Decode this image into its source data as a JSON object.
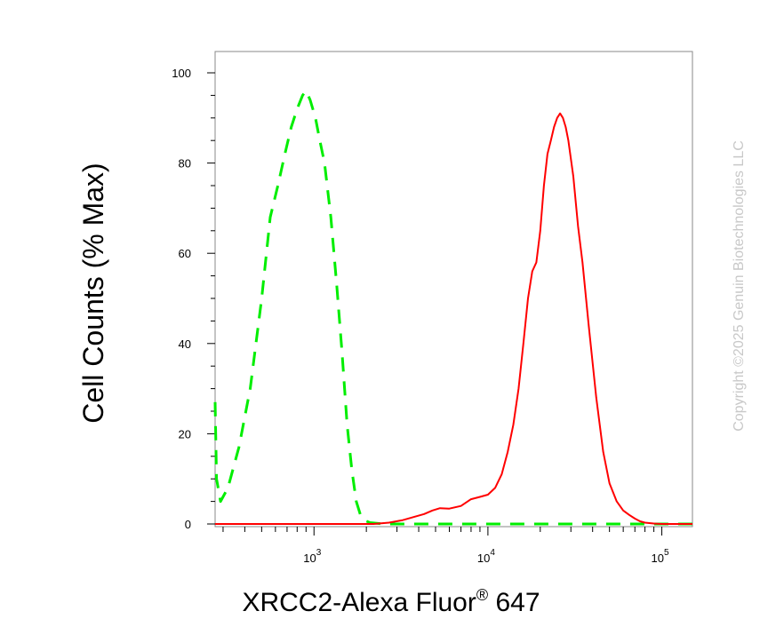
{
  "chart_data": {
    "type": "line",
    "title": "",
    "xlabel": "XRCC2-Alexa Fluor",
    "xlabel_superscript": "®",
    "xlabel_suffix": " 647",
    "ylabel": "Cell Counts (% Max)",
    "x_scale": "log",
    "xlim": [
      270,
      150000
    ],
    "ylim": [
      0,
      100
    ],
    "y_ticks": [
      0,
      20,
      40,
      60,
      80,
      100
    ],
    "y_tick_labels": [
      "0",
      "20",
      "40",
      "60",
      "80",
      "100"
    ],
    "x_ticks": [
      {
        "value": 1000,
        "base": "10",
        "exp": "3"
      },
      {
        "value": 10000,
        "base": "10",
        "exp": "4"
      },
      {
        "value": 100000,
        "base": "10",
        "exp": "5"
      }
    ],
    "grid": false,
    "legend": "none",
    "series": [
      {
        "color": "#00ee00",
        "style": "dashed",
        "points": [
          [
            270,
            27
          ],
          [
            275,
            10
          ],
          [
            290,
            5
          ],
          [
            320,
            8
          ],
          [
            370,
            17
          ],
          [
            430,
            30
          ],
          [
            500,
            50
          ],
          [
            560,
            68
          ],
          [
            620,
            75
          ],
          [
            680,
            82
          ],
          [
            740,
            88
          ],
          [
            800,
            92
          ],
          [
            860,
            95
          ],
          [
            900,
            96
          ],
          [
            950,
            94
          ],
          [
            1020,
            90
          ],
          [
            1080,
            85
          ],
          [
            1150,
            80
          ],
          [
            1250,
            68
          ],
          [
            1350,
            53
          ],
          [
            1450,
            38
          ],
          [
            1550,
            22
          ],
          [
            1650,
            12
          ],
          [
            1750,
            5
          ],
          [
            1850,
            2
          ],
          [
            1950,
            0.8
          ],
          [
            2100,
            0.3
          ],
          [
            2500,
            0
          ],
          [
            150000,
            0
          ]
        ]
      },
      {
        "color": "#ff0000",
        "style": "solid",
        "points": [
          [
            270,
            0
          ],
          [
            2200,
            0
          ],
          [
            2700,
            0.3
          ],
          [
            3200,
            0.8
          ],
          [
            3700,
            1.5
          ],
          [
            4300,
            2.2
          ],
          [
            4800,
            3
          ],
          [
            5300,
            3.5
          ],
          [
            6000,
            3.4
          ],
          [
            7000,
            4
          ],
          [
            8000,
            5.5
          ],
          [
            9000,
            6
          ],
          [
            10000,
            6.5
          ],
          [
            11000,
            8
          ],
          [
            12000,
            11
          ],
          [
            13000,
            16
          ],
          [
            14000,
            22
          ],
          [
            15000,
            30
          ],
          [
            16000,
            40
          ],
          [
            17000,
            50
          ],
          [
            18000,
            56
          ],
          [
            19000,
            58
          ],
          [
            20000,
            65
          ],
          [
            21000,
            75
          ],
          [
            22000,
            82
          ],
          [
            23000,
            85
          ],
          [
            24000,
            88
          ],
          [
            25000,
            90
          ],
          [
            26000,
            91
          ],
          [
            27000,
            90
          ],
          [
            28000,
            88
          ],
          [
            29000,
            85
          ],
          [
            31000,
            77
          ],
          [
            33000,
            66
          ],
          [
            35000,
            58
          ],
          [
            38000,
            44
          ],
          [
            42000,
            28
          ],
          [
            46000,
            16
          ],
          [
            50000,
            9
          ],
          [
            55000,
            5
          ],
          [
            60000,
            3
          ],
          [
            65000,
            2
          ],
          [
            70000,
            1.2
          ],
          [
            75000,
            0.6
          ],
          [
            80000,
            0.3
          ],
          [
            90000,
            0.1
          ],
          [
            100000,
            0
          ],
          [
            150000,
            0
          ]
        ]
      }
    ]
  },
  "watermark": "Copyright ©2025 Genuin Biotechnologies LLC"
}
